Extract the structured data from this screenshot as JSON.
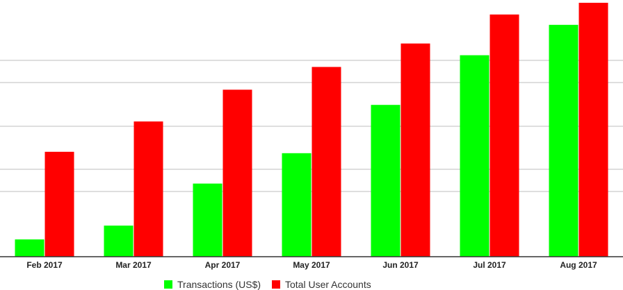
{
  "chart_data": {
    "type": "bar",
    "categories": [
      "Feb 2017",
      "Mar 2017",
      "Apr 2017",
      "May 2017",
      "Jun 2017",
      "Jul 2017",
      "Aug 2017"
    ],
    "series": [
      {
        "name": "Transactions (US$)",
        "color": "#00ff00",
        "values": [
          25,
          45,
          106,
          150,
          220,
          292,
          336
        ]
      },
      {
        "name": "Total User Accounts",
        "color": "#ff0000",
        "values": [
          152,
          196,
          242,
          275,
          309,
          351,
          368
        ]
      }
    ],
    "title": "",
    "xlabel": "",
    "ylabel": "",
    "ylim": [
      0,
      370
    ],
    "grid": true,
    "legend_position": "bottom-center"
  }
}
